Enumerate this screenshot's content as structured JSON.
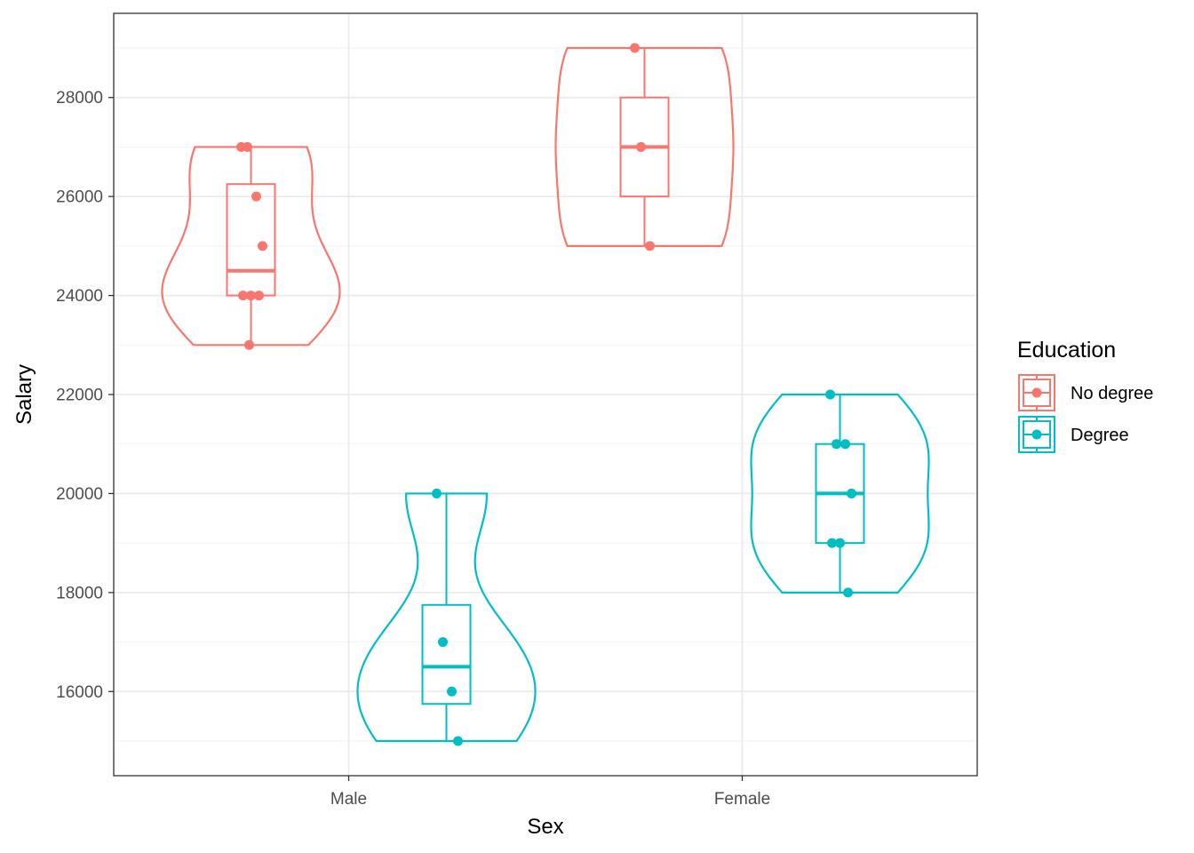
{
  "chart_data": {
    "type": "violin",
    "xlabel": "Sex",
    "ylabel": "Salary",
    "categories": [
      "Male",
      "Female"
    ],
    "ylim": [
      14300,
      29700
    ],
    "yticks": [
      16000,
      18000,
      20000,
      22000,
      24000,
      26000,
      28000
    ],
    "grid": true,
    "legend": {
      "title": "Education",
      "position": "right"
    },
    "series": [
      {
        "name": "No degree",
        "color": "#F8766D",
        "groups": [
          {
            "category": "Male",
            "points": [
              27000,
              27000,
              26000,
              25000,
              24000,
              24000,
              24000,
              23000
            ],
            "box": {
              "q1": 24000,
              "median": 24500,
              "q3": 26250,
              "min": 23000,
              "max": 27000
            }
          },
          {
            "category": "Female",
            "points": [
              29000,
              27000,
              25000
            ],
            "box": {
              "q1": 26000,
              "median": 27000,
              "q3": 28000,
              "min": 25000,
              "max": 29000
            }
          }
        ]
      },
      {
        "name": "Degree",
        "color": "#00BFC4",
        "groups": [
          {
            "category": "Male",
            "points": [
              20000,
              17000,
              16000,
              15000
            ],
            "box": {
              "q1": 15750,
              "median": 16500,
              "q3": 17750,
              "min": 15000,
              "max": 20000
            }
          },
          {
            "category": "Female",
            "points": [
              22000,
              21000,
              21000,
              20000,
              19000,
              19000,
              18000
            ],
            "box": {
              "q1": 19000,
              "median": 20000,
              "q3": 21000,
              "min": 18000,
              "max": 22000
            }
          }
        ]
      }
    ]
  }
}
